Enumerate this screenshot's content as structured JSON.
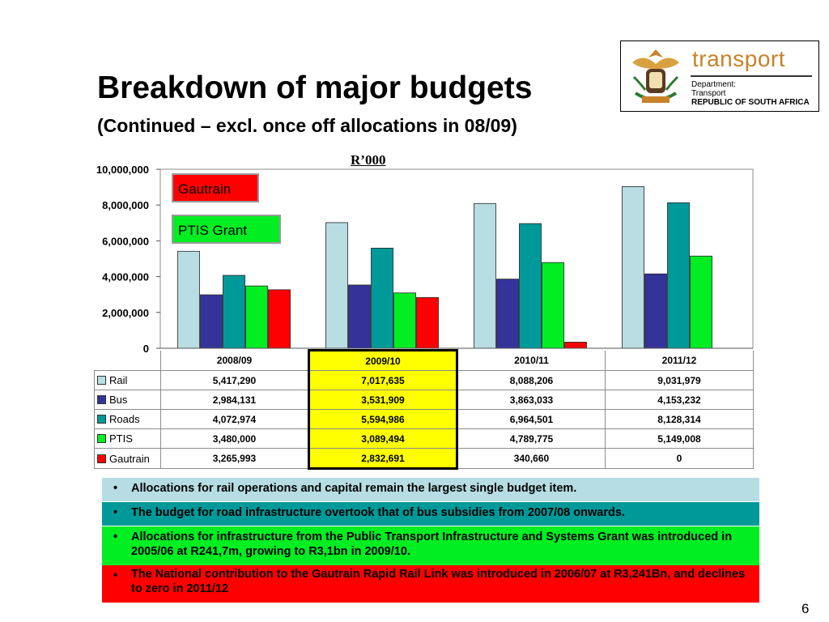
{
  "slide": {
    "title": "Breakdown of major budgets",
    "subtitle": "(Continued – excl. once off allocations in 08/09)",
    "unit": "R’000",
    "page_number": "6"
  },
  "logo": {
    "brand": "transport",
    "dept_line1": "Department:",
    "dept_line2": "Transport",
    "dept_line3": "REPUBLIC OF SOUTH AFRICA"
  },
  "legend_boxes": {
    "gautrain": "Gautrain",
    "ptis": "PTIS Grant"
  },
  "bullets": [
    "Allocations for rail operations and capital remain the largest single budget item.",
    "The budget for road infrastructure overtook that of bus subsidies from 2007/08 onwards.",
    "Allocations for infrastructure from the Public Transport Infrastructure and Systems Grant was introduced in 2005/06 at R241,7m, growing to R3,1bn in 2009/10.",
    "The National contribution to the Gautrain Rapid Rail Link was introduced in 2006/07 at R3,241Bn, and declines to zero  in 2011/12"
  ],
  "colors": {
    "rail": "#b8dde3",
    "bus": "#333399",
    "roads": "#009999",
    "ptis": "#00ee22",
    "gautrain": "#ff0000",
    "highlight": "#ffff00"
  },
  "chart_data": {
    "type": "bar",
    "categories": [
      "2008/09",
      "2009/10",
      "2010/11",
      "2011/12"
    ],
    "ylim": [
      0,
      10000000
    ],
    "yticks": [
      "0",
      "2,000,000",
      "4,000,000",
      "6,000,000",
      "8,000,000",
      "10,000,000"
    ],
    "series": [
      {
        "name": "Rail",
        "values": [
          5417290,
          7017635,
          8088206,
          9031979
        ],
        "labels": [
          "5,417,290",
          "7,017,635",
          "8,088,206",
          "9,031,979"
        ]
      },
      {
        "name": "Bus",
        "values": [
          2984131,
          3531909,
          3863033,
          4153232
        ],
        "labels": [
          "2,984,131",
          "3,531,909",
          "3,863,033",
          "4,153,232"
        ]
      },
      {
        "name": "Roads",
        "values": [
          4072974,
          5594986,
          6964501,
          8128314
        ],
        "labels": [
          "4,072,974",
          "5,594,986",
          "6,964,501",
          "8,128,314"
        ]
      },
      {
        "name": "PTIS",
        "values": [
          3480000,
          3089494,
          4789775,
          5149008
        ],
        "labels": [
          "3,480,000",
          "3,089,494",
          "4,789,775",
          "5,149,008"
        ]
      },
      {
        "name": "Gautrain",
        "values": [
          3265993,
          2832691,
          340660,
          0
        ],
        "labels": [
          "3,265,993",
          "2,832,691",
          "340,660",
          "0"
        ]
      }
    ],
    "highlighted_category": "2009/10",
    "grid": false,
    "legend": "data-table"
  }
}
